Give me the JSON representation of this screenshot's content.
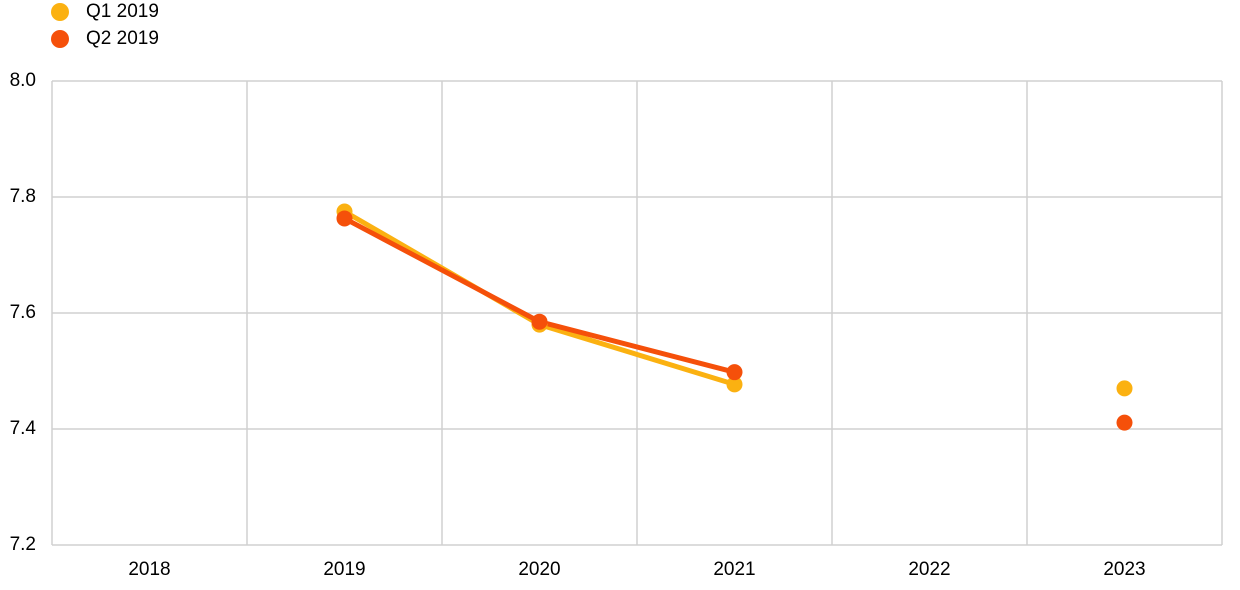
{
  "chart_data": {
    "type": "line",
    "categories": [
      "2018",
      "2019",
      "2020",
      "2021",
      "2022",
      "2023"
    ],
    "series": [
      {
        "name": "Q1 2019",
        "color": "#fbb111",
        "values": [
          null,
          7.775,
          7.58,
          7.477,
          null,
          7.47
        ]
      },
      {
        "name": "Q2 2019",
        "color": "#f5500a",
        "values": [
          null,
          7.763,
          7.585,
          7.498,
          null,
          7.411
        ]
      }
    ],
    "ylim": [
      7.2,
      8.0
    ],
    "yticks": [
      7.2,
      7.4,
      7.6,
      7.8,
      {
        "value": 8.0,
        "label": "8.0"
      }
    ],
    "grid": true,
    "legend": "top-left"
  }
}
